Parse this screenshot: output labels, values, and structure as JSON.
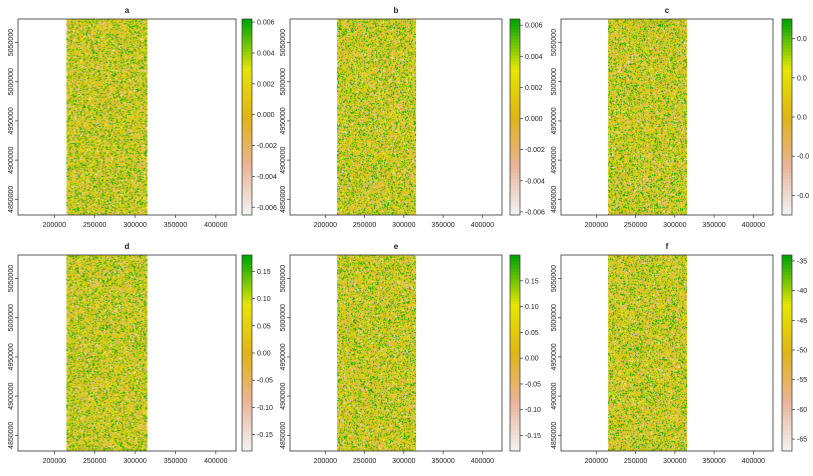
{
  "chart_data": [
    {
      "type": "heatmap",
      "title": "a",
      "x_ticks": [
        "200000",
        "250000",
        "300000",
        "350000",
        "400000"
      ],
      "y_ticks": [
        "4850000",
        "4900000",
        "4950000",
        "5000000",
        "5050000"
      ],
      "legend_ticks": [
        "-0.006",
        "-0.004",
        "-0.002",
        "0.000",
        "0.002",
        "0.004",
        "0.006"
      ],
      "value_range": [
        -0.0065,
        0.0062
      ],
      "raster_x_extent": [
        215000,
        315000
      ],
      "legend_placement": "right",
      "grid": false
    },
    {
      "type": "heatmap",
      "title": "b",
      "x_ticks": [
        "200000",
        "250000",
        "300000",
        "350000",
        "400000"
      ],
      "y_ticks": [
        "4850000",
        "4900000",
        "4950000",
        "5000000",
        "5050000"
      ],
      "legend_ticks": [
        "-0.006",
        "-0.004",
        "-0.002",
        "0.000",
        "0.002",
        "0.004",
        "0.006"
      ],
      "value_range": [
        -0.0062,
        0.0064
      ],
      "raster_x_extent": [
        215000,
        315000
      ],
      "legend_placement": "right",
      "grid": false
    },
    {
      "type": "heatmap",
      "title": "c",
      "x_ticks": [
        "200000",
        "250000",
        "300000",
        "350000",
        "400000"
      ],
      "y_ticks": [
        "4850000",
        "4900000",
        "4950000",
        "5000000",
        "5050000"
      ],
      "legend_ticks": [
        "-0.0",
        "-0.0",
        "0.0",
        "0.0",
        "0.0"
      ],
      "value_range": [
        -0.025,
        0.025
      ],
      "raster_x_extent": [
        215000,
        315000
      ],
      "legend_placement": "right",
      "grid": false
    },
    {
      "type": "heatmap",
      "title": "d",
      "x_ticks": [
        "200000",
        "250000",
        "300000",
        "350000",
        "400000"
      ],
      "y_ticks": [
        "4850000",
        "4900000",
        "4950000",
        "5000000",
        "5050000"
      ],
      "legend_ticks": [
        "-0.15",
        "-0.10",
        "-0.05",
        "0.00",
        "0.05",
        "0.10",
        "0.15"
      ],
      "value_range": [
        -0.18,
        0.18
      ],
      "raster_x_extent": [
        215000,
        315000
      ],
      "legend_placement": "right",
      "grid": false
    },
    {
      "type": "heatmap",
      "title": "e",
      "x_ticks": [
        "200000",
        "250000",
        "300000",
        "350000",
        "400000"
      ],
      "y_ticks": [
        "4850000",
        "4900000",
        "4950000",
        "5000000",
        "5050000"
      ],
      "legend_ticks": [
        "-0.15",
        "-0.10",
        "-0.05",
        "0.00",
        "0.05",
        "0.10",
        "0.15"
      ],
      "value_range": [
        -0.18,
        0.2
      ],
      "raster_x_extent": [
        215000,
        315000
      ],
      "legend_placement": "right",
      "grid": false
    },
    {
      "type": "heatmap",
      "title": "f",
      "x_ticks": [
        "200000",
        "250000",
        "300000",
        "350000",
        "400000"
      ],
      "y_ticks": [
        "4850000",
        "4900000",
        "4950000",
        "5000000",
        "5050000"
      ],
      "legend_ticks": [
        "-65",
        "-60",
        "-55",
        "-50",
        "-45",
        "-40",
        "-35"
      ],
      "value_range": [
        -67,
        -34
      ],
      "raster_x_extent": [
        215000,
        315000
      ],
      "legend_placement": "right",
      "grid": false
    }
  ],
  "axis_extent": {
    "x": [
      155000,
      425000
    ],
    "y": [
      4830000,
      5080000
    ]
  },
  "colors": {
    "ramp": [
      "#f2f2f2",
      "#eab497",
      "#e0b414",
      "#e6e600",
      "#00a600"
    ]
  }
}
